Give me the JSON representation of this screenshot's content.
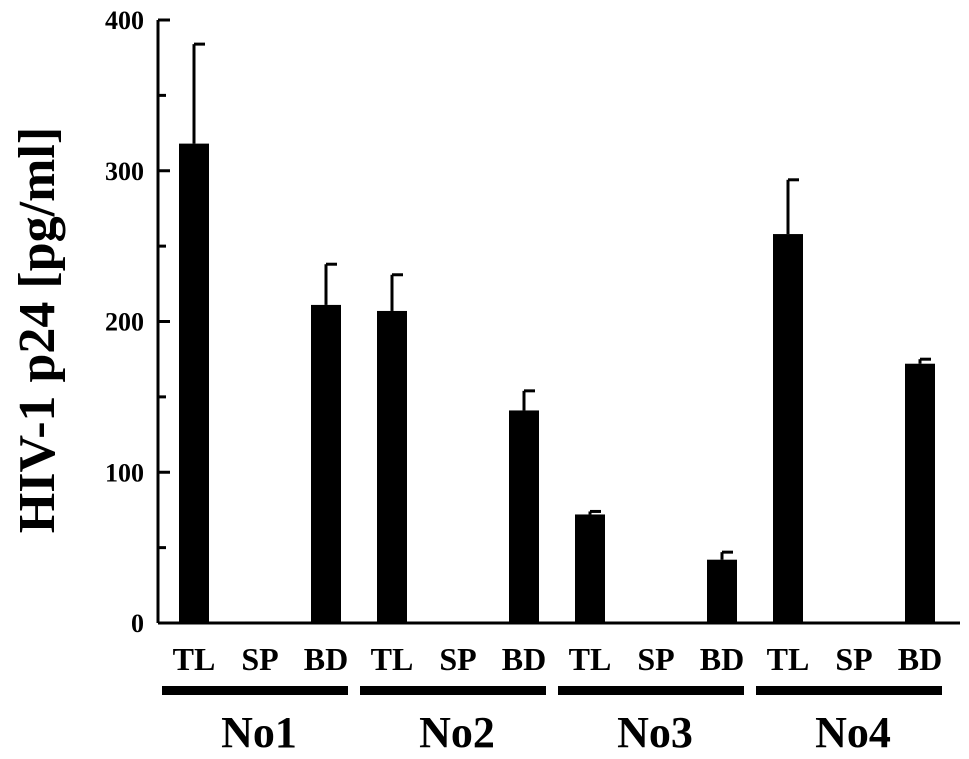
{
  "chart_data": {
    "type": "bar",
    "ylabel": "HIV-1 p24 [pg/ml]",
    "ylim": [
      0,
      400
    ],
    "yticks": [
      "0",
      "100",
      "200",
      "300",
      "400"
    ],
    "grid": false,
    "legend": "none",
    "bar_color": "#000000",
    "groups": [
      {
        "label": "No1",
        "categories": [
          "TL",
          "SP",
          "BD"
        ],
        "values": [
          318,
          1,
          211
        ],
        "errors": [
          66,
          0,
          27
        ]
      },
      {
        "label": "No2",
        "categories": [
          "TL",
          "SP",
          "BD"
        ],
        "values": [
          207,
          0,
          141
        ],
        "errors": [
          24,
          0,
          13
        ]
      },
      {
        "label": "No3",
        "categories": [
          "TL",
          "SP",
          "BD"
        ],
        "values": [
          72,
          0,
          42
        ],
        "errors": [
          2,
          0,
          5
        ]
      },
      {
        "label": "No4",
        "categories": [
          "TL",
          "SP",
          "BD"
        ],
        "values": [
          258,
          0,
          172
        ],
        "errors": [
          36,
          0,
          3
        ]
      }
    ]
  }
}
